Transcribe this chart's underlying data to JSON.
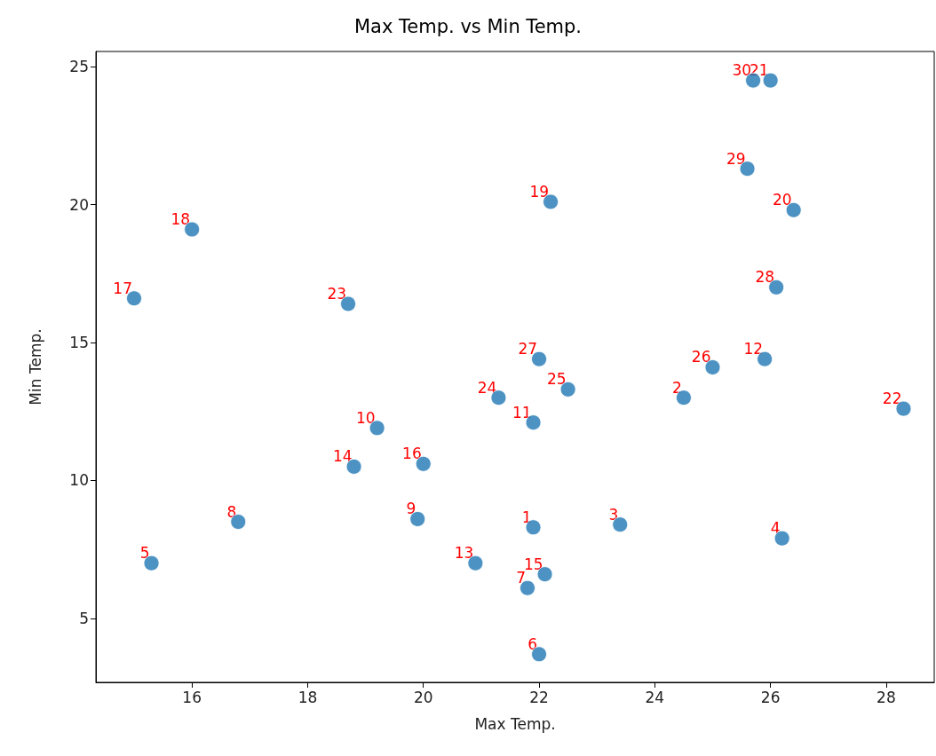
{
  "chart_data": {
    "type": "scatter",
    "title": "Max Temp. vs Min Temp.",
    "xlabel": "Max Temp.",
    "ylabel": "Min Temp.",
    "x": [
      21.9,
      24.5,
      23.4,
      26.2,
      15.3,
      22.0,
      21.8,
      16.8,
      19.9,
      19.2,
      21.9,
      25.9,
      20.9,
      18.8,
      22.1,
      20.0,
      15.0,
      16.0,
      22.2,
      26.4,
      26.0,
      28.3,
      18.7,
      21.3,
      22.5,
      25.0,
      22.0,
      26.1,
      25.6,
      25.7
    ],
    "series": [
      {
        "color": "#1f77b4",
        "values": [
          8.3,
          13.0,
          8.4,
          7.9,
          7.0,
          3.7,
          6.1,
          8.5,
          8.6,
          11.9,
          12.1,
          14.4,
          7.0,
          10.5,
          6.6,
          10.6,
          16.6,
          19.1,
          20.1,
          19.8,
          24.5,
          12.6,
          16.4,
          13.0,
          13.3,
          14.1,
          14.4,
          17.0,
          21.3,
          24.5
        ]
      }
    ],
    "annotations": [
      {
        "text": "1",
        "x": 21.9,
        "y": 8.3
      },
      {
        "text": "2",
        "x": 24.5,
        "y": 13.0
      },
      {
        "text": "3",
        "x": 23.4,
        "y": 8.4
      },
      {
        "text": "4",
        "x": 26.2,
        "y": 7.9
      },
      {
        "text": "5",
        "x": 15.3,
        "y": 7.0
      },
      {
        "text": "6",
        "x": 22.0,
        "y": 3.7
      },
      {
        "text": "7",
        "x": 21.8,
        "y": 6.1
      },
      {
        "text": "8",
        "x": 16.8,
        "y": 8.5
      },
      {
        "text": "9",
        "x": 19.9,
        "y": 8.6
      },
      {
        "text": "10",
        "x": 19.2,
        "y": 11.9
      },
      {
        "text": "11",
        "x": 21.9,
        "y": 12.1
      },
      {
        "text": "12",
        "x": 25.9,
        "y": 14.4
      },
      {
        "text": "13",
        "x": 20.9,
        "y": 7.0
      },
      {
        "text": "14",
        "x": 18.8,
        "y": 10.5
      },
      {
        "text": "15",
        "x": 22.1,
        "y": 6.6
      },
      {
        "text": "16",
        "x": 20.0,
        "y": 10.6
      },
      {
        "text": "17",
        "x": 15.0,
        "y": 16.6
      },
      {
        "text": "18",
        "x": 16.0,
        "y": 19.1
      },
      {
        "text": "19",
        "x": 22.2,
        "y": 20.1
      },
      {
        "text": "20",
        "x": 26.4,
        "y": 19.8
      },
      {
        "text": "21",
        "x": 26.0,
        "y": 24.5
      },
      {
        "text": "22",
        "x": 28.3,
        "y": 12.6
      },
      {
        "text": "23",
        "x": 18.7,
        "y": 16.4
      },
      {
        "text": "24",
        "x": 21.3,
        "y": 13.0
      },
      {
        "text": "25",
        "x": 22.5,
        "y": 13.3
      },
      {
        "text": "26",
        "x": 25.0,
        "y": 14.1
      },
      {
        "text": "27",
        "x": 22.0,
        "y": 14.4
      },
      {
        "text": "28",
        "x": 26.1,
        "y": 17.0
      },
      {
        "text": "29",
        "x": 25.6,
        "y": 21.3
      },
      {
        "text": "30",
        "x": 25.7,
        "y": 24.5
      }
    ],
    "xlim": [
      14.34,
      28.83
    ],
    "xticks": [
      16,
      18,
      20,
      22,
      24,
      26,
      28
    ],
    "ylim": [
      2.68,
      25.55
    ],
    "yticks": [
      5,
      10,
      15,
      20,
      25
    ],
    "marker": "circle",
    "grid": false
  }
}
